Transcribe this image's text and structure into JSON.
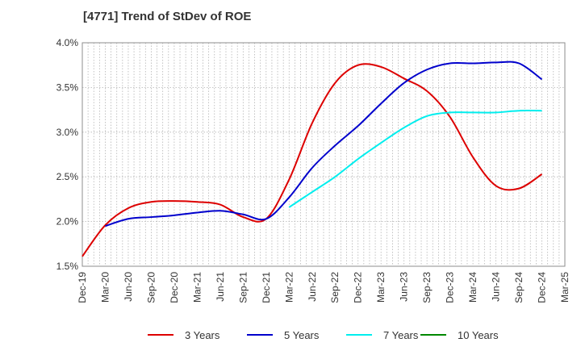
{
  "chart_data": {
    "type": "line",
    "title": "[4771]  Trend of StDev of ROE",
    "xlabel": "",
    "ylabel": "",
    "ylim": [
      1.5,
      4.0
    ],
    "y_ticks": [
      "1.5%",
      "2.0%",
      "2.5%",
      "3.0%",
      "3.5%",
      "4.0%"
    ],
    "x_ticks": [
      "Dec-19",
      "Mar-20",
      "Jun-20",
      "Sep-20",
      "Dec-20",
      "Mar-21",
      "Jun-21",
      "Sep-21",
      "Dec-21",
      "Mar-22",
      "Jun-22",
      "Sep-22",
      "Dec-22",
      "Mar-23",
      "Jun-23",
      "Sep-23",
      "Dec-23",
      "Mar-24",
      "Jun-24",
      "Sep-24",
      "Dec-24",
      "Mar-25"
    ],
    "x": [
      "Dec-19",
      "Mar-20",
      "Jun-20",
      "Sep-20",
      "Dec-20",
      "Mar-21",
      "Jun-21",
      "Sep-21",
      "Dec-21",
      "Mar-22",
      "Jun-22",
      "Sep-22",
      "Dec-22",
      "Mar-23",
      "Jun-23",
      "Sep-23",
      "Dec-23",
      "Mar-24",
      "Jun-24",
      "Sep-24",
      "Dec-24"
    ],
    "grid": true,
    "legend_position": "bottom",
    "series": [
      {
        "name": "3 Years",
        "color": "#dd0000",
        "values": [
          1.61,
          1.96,
          2.15,
          2.22,
          2.23,
          2.22,
          2.19,
          2.05,
          2.03,
          2.47,
          3.1,
          3.55,
          3.75,
          3.73,
          3.6,
          3.46,
          3.17,
          2.72,
          2.4,
          2.37,
          2.53
        ]
      },
      {
        "name": "5 Years",
        "color": "#0000cc",
        "values": [
          null,
          1.95,
          2.03,
          2.05,
          2.07,
          2.1,
          2.12,
          2.08,
          2.03,
          2.27,
          2.6,
          2.85,
          3.07,
          3.32,
          3.55,
          3.7,
          3.77,
          3.77,
          3.78,
          3.77,
          3.59
        ]
      },
      {
        "name": "7 Years",
        "color": "#00eeee",
        "values": [
          null,
          null,
          null,
          null,
          null,
          null,
          null,
          null,
          null,
          2.16,
          2.33,
          2.5,
          2.7,
          2.88,
          3.05,
          3.18,
          3.22,
          3.22,
          3.22,
          3.24,
          3.24
        ]
      },
      {
        "name": "10 Years",
        "color": "#008800",
        "values": [
          null,
          null,
          null,
          null,
          null,
          null,
          null,
          null,
          null,
          null,
          null,
          null,
          null,
          null,
          null,
          null,
          null,
          null,
          null,
          null,
          null
        ]
      }
    ]
  }
}
